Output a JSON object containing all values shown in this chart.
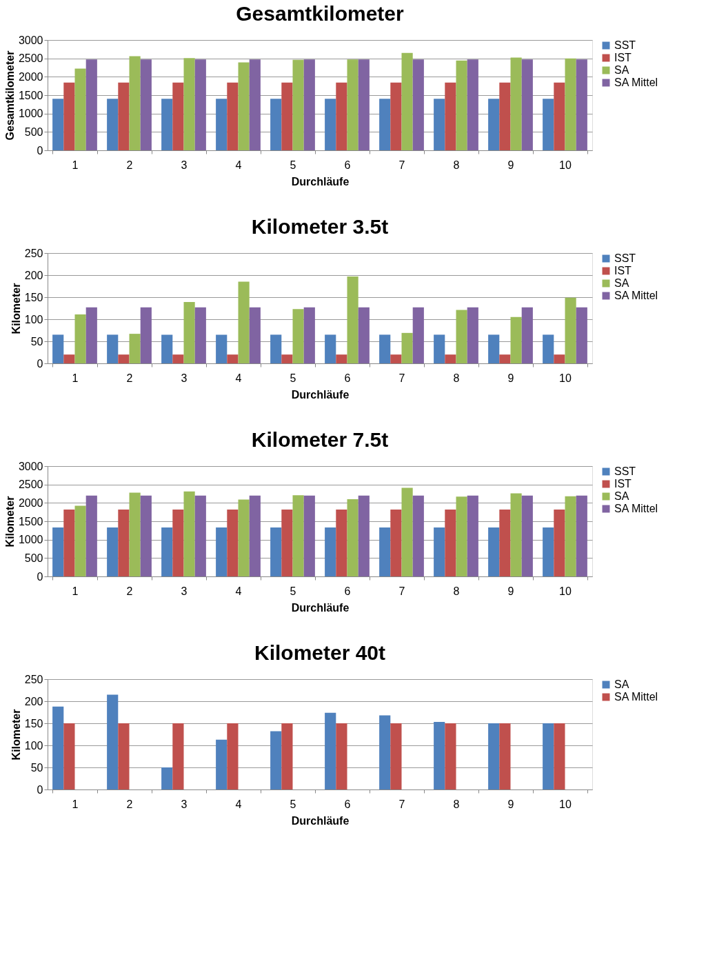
{
  "chart_data": [
    {
      "type": "bar",
      "title": "Gesamtkilometer",
      "xlabel": "Durchläufe",
      "ylabel": "Gesamtkilometer",
      "categories": [
        "1",
        "2",
        "3",
        "4",
        "5",
        "6",
        "7",
        "8",
        "9",
        "10"
      ],
      "series": [
        {
          "name": "SST",
          "color": "#4f81bd",
          "values": [
            1400,
            1400,
            1400,
            1400,
            1400,
            1400,
            1400,
            1400,
            1400,
            1400
          ]
        },
        {
          "name": "IST",
          "color": "#c0504d",
          "values": [
            1840,
            1840,
            1840,
            1840,
            1840,
            1840,
            1840,
            1840,
            1840,
            1840
          ]
        },
        {
          "name": "SA",
          "color": "#9bbb59",
          "values": [
            2220,
            2560,
            2510,
            2390,
            2460,
            2470,
            2650,
            2440,
            2520,
            2500
          ]
        },
        {
          "name": "SA Mittel",
          "color": "#8064a2",
          "values": [
            2470,
            2470,
            2470,
            2470,
            2470,
            2470,
            2470,
            2470,
            2470,
            2470
          ]
        }
      ],
      "ylim": [
        0,
        3000
      ],
      "yticks": [
        0,
        500,
        1000,
        1500,
        2000,
        2500,
        3000
      ],
      "grid": "y",
      "legend": "right"
    },
    {
      "type": "bar",
      "title": "Kilometer 3.5t",
      "xlabel": "Durchläufe",
      "ylabel": "Kilometer",
      "categories": [
        "1",
        "2",
        "3",
        "4",
        "5",
        "6",
        "7",
        "8",
        "9",
        "10"
      ],
      "series": [
        {
          "name": "SST",
          "color": "#4f81bd",
          "values": [
            65,
            65,
            65,
            65,
            65,
            65,
            65,
            65,
            65,
            65
          ]
        },
        {
          "name": "IST",
          "color": "#c0504d",
          "values": [
            20,
            20,
            20,
            20,
            20,
            20,
            20,
            20,
            20,
            20
          ]
        },
        {
          "name": "SA",
          "color": "#9bbb59",
          "values": [
            111,
            67,
            139,
            185,
            123,
            197,
            69,
            121,
            105,
            149
          ]
        },
        {
          "name": "SA Mittel",
          "color": "#8064a2",
          "values": [
            127,
            127,
            127,
            127,
            127,
            127,
            127,
            127,
            127,
            127
          ]
        }
      ],
      "ylim": [
        0,
        250
      ],
      "yticks": [
        0,
        50,
        100,
        150,
        200,
        250
      ],
      "grid": "y",
      "legend": "right"
    },
    {
      "type": "bar",
      "title": "Kilometer 7.5t",
      "xlabel": "Durchläufe",
      "ylabel": "Kilometer",
      "categories": [
        "1",
        "2",
        "3",
        "4",
        "5",
        "6",
        "7",
        "8",
        "9",
        "10"
      ],
      "series": [
        {
          "name": "SST",
          "color": "#4f81bd",
          "values": [
            1330,
            1330,
            1330,
            1330,
            1330,
            1330,
            1330,
            1330,
            1330,
            1330
          ]
        },
        {
          "name": "IST",
          "color": "#c0504d",
          "values": [
            1820,
            1820,
            1820,
            1820,
            1820,
            1820,
            1820,
            1820,
            1820,
            1820
          ]
        },
        {
          "name": "SA",
          "color": "#9bbb59",
          "values": [
            1920,
            2280,
            2310,
            2090,
            2210,
            2100,
            2410,
            2170,
            2260,
            2180
          ]
        },
        {
          "name": "SA Mittel",
          "color": "#8064a2",
          "values": [
            2200,
            2200,
            2200,
            2200,
            2200,
            2200,
            2200,
            2200,
            2200,
            2200
          ]
        }
      ],
      "ylim": [
        0,
        3000
      ],
      "yticks": [
        0,
        500,
        1000,
        1500,
        2000,
        2500,
        3000
      ],
      "grid": "y",
      "legend": "right"
    },
    {
      "type": "bar",
      "title": "Kilometer 40t",
      "xlabel": "Durchläufe",
      "ylabel": "Kilometer",
      "categories": [
        "1",
        "2",
        "3",
        "4",
        "5",
        "6",
        "7",
        "8",
        "9",
        "10"
      ],
      "series": [
        {
          "name": "SA",
          "color": "#4f81bd",
          "values": [
            188,
            215,
            50,
            113,
            132,
            174,
            168,
            153,
            150,
            150
          ]
        },
        {
          "name": "SA Mittel",
          "color": "#c0504d",
          "values": [
            150,
            150,
            150,
            150,
            150,
            150,
            150,
            150,
            150,
            150
          ]
        }
      ],
      "ylim": [
        0,
        250
      ],
      "yticks": [
        0,
        50,
        100,
        150,
        200,
        250
      ],
      "grid": "y",
      "legend": "right"
    }
  ]
}
